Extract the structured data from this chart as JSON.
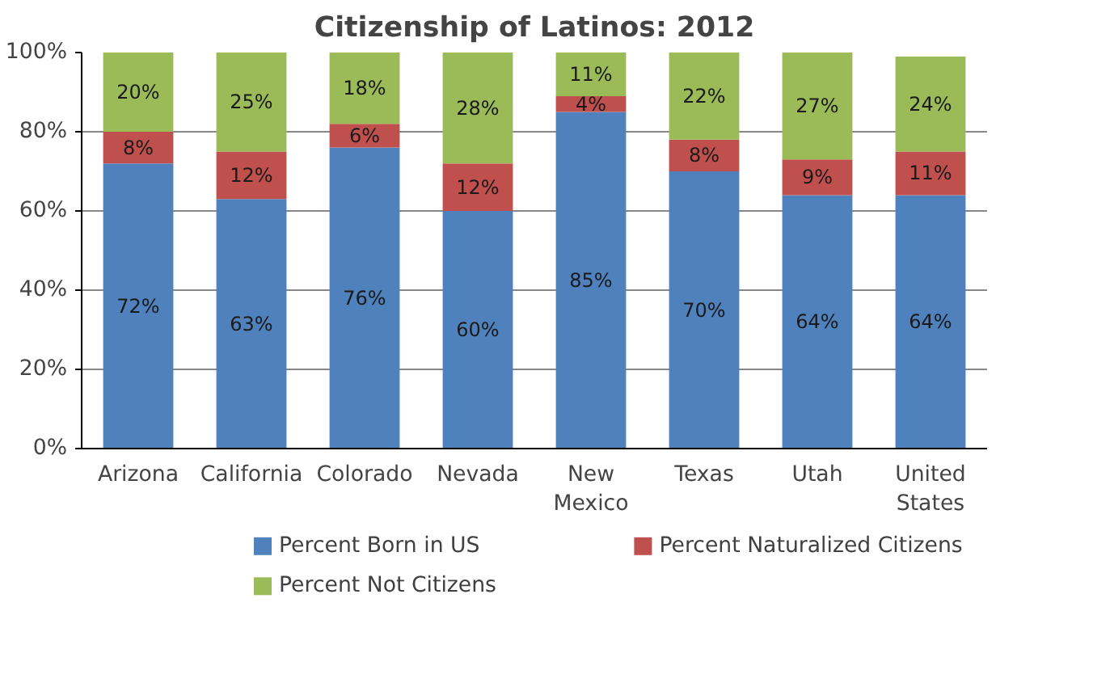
{
  "chart_data": {
    "type": "bar",
    "title": "Citizenship of Latinos: 2012",
    "stacked": true,
    "categories": [
      "Arizona",
      "California",
      "Colorado",
      "Nevada",
      "New Mexico",
      "Texas",
      "Utah",
      "United States"
    ],
    "series": [
      {
        "name": "Percent Born in US",
        "color": "#4f81bd",
        "values": [
          72,
          63,
          76,
          60,
          85,
          70,
          64,
          64
        ],
        "value_labels": [
          "72%",
          "63%",
          "76%",
          "60%",
          "85%",
          "70%",
          "64%",
          "64%"
        ]
      },
      {
        "name": "Percent Naturalized Citizens",
        "color": "#c0504d",
        "values": [
          8,
          12,
          6,
          12,
          4,
          8,
          9,
          11
        ],
        "value_labels": [
          "8%",
          "12%",
          "6%",
          "12%",
          "4%",
          "8%",
          "9%",
          "11%"
        ]
      },
      {
        "name": "Percent Not Citizens",
        "color": "#9bbb59",
        "values": [
          20,
          25,
          18,
          28,
          11,
          22,
          27,
          24
        ],
        "value_labels": [
          "20%",
          "25%",
          "18%",
          "28%",
          "11%",
          "22%",
          "27%",
          "24%"
        ]
      }
    ],
    "ylim": [
      0,
      100
    ],
    "yticks": [
      {
        "value": 0,
        "label": "0%"
      },
      {
        "value": 20,
        "label": "20%"
      },
      {
        "value": 40,
        "label": "40%"
      },
      {
        "value": 60,
        "label": "60%"
      },
      {
        "value": 80,
        "label": "80%"
      },
      {
        "value": 100,
        "label": "100%"
      }
    ],
    "grid": "y",
    "legend": "bottom"
  }
}
